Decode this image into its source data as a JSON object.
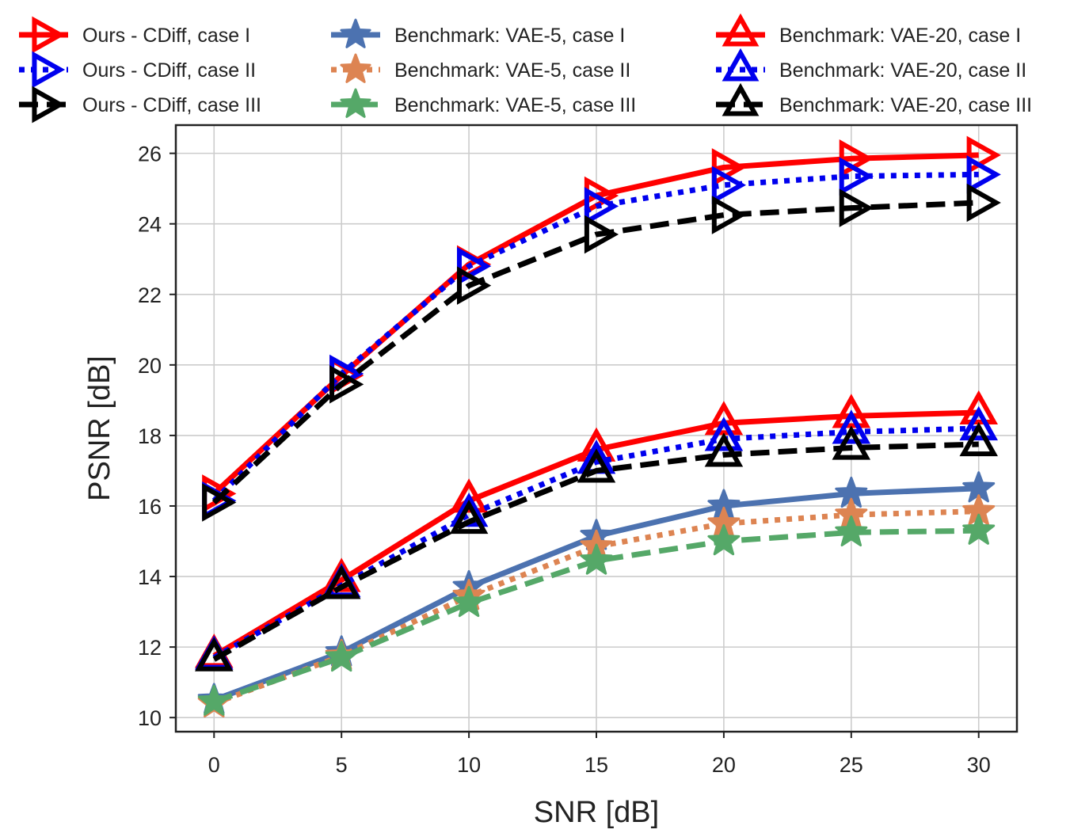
{
  "chart_data": {
    "type": "line",
    "xlabel": "SNR [dB]",
    "ylabel": "PSNR [dB]",
    "x": [
      0,
      5,
      10,
      15,
      20,
      25,
      30
    ],
    "xlim": [
      -1.5,
      31.5
    ],
    "ylim": [
      9.6,
      26.8
    ],
    "xticks": [
      0,
      5,
      10,
      15,
      20,
      25,
      30
    ],
    "yticks": [
      10,
      12,
      14,
      16,
      18,
      20,
      22,
      24,
      26
    ],
    "grid": true,
    "legend_position": "top, above plot, 3 columns",
    "series": [
      {
        "name": "Ours - CDiff, case I",
        "color": "#ff0000",
        "dash": "solid",
        "marker": "triangle-right",
        "values": [
          16.35,
          19.7,
          22.85,
          24.8,
          25.6,
          25.85,
          25.95
        ]
      },
      {
        "name": "Ours - CDiff, case II",
        "color": "#0000ee",
        "dash": "dotted",
        "marker": "triangle-right",
        "values": [
          16.15,
          19.75,
          22.8,
          24.5,
          25.1,
          25.35,
          25.4
        ]
      },
      {
        "name": "Ours - CDiff, case III",
        "color": "#000000",
        "dash": "dashed",
        "marker": "triangle-right",
        "values": [
          16.1,
          19.45,
          22.25,
          23.7,
          24.25,
          24.45,
          24.6
        ]
      },
      {
        "name": "Benchmark: VAE-5, case I",
        "color": "#4c72b0",
        "dash": "solid",
        "marker": "star",
        "values": [
          10.5,
          11.85,
          13.7,
          15.15,
          16.0,
          16.35,
          16.5
        ]
      },
      {
        "name": "Benchmark: VAE-5, case II",
        "color": "#dd8452",
        "dash": "dotted",
        "marker": "star",
        "values": [
          10.4,
          11.75,
          13.45,
          14.85,
          15.5,
          15.75,
          15.85
        ]
      },
      {
        "name": "Benchmark: VAE-5, case III",
        "color": "#55a868",
        "dash": "dashed",
        "marker": "star",
        "values": [
          10.45,
          11.7,
          13.25,
          14.45,
          15.0,
          15.25,
          15.3
        ]
      },
      {
        "name": "Benchmark: VAE-20, case I",
        "color": "#ff0000",
        "dash": "solid",
        "marker": "triangle-up",
        "values": [
          11.75,
          13.9,
          16.15,
          17.6,
          18.35,
          18.55,
          18.65
        ]
      },
      {
        "name": "Benchmark: VAE-20, case II",
        "color": "#0000ee",
        "dash": "dotted",
        "marker": "triangle-up",
        "values": [
          11.7,
          13.75,
          15.75,
          17.25,
          17.9,
          18.1,
          18.2
        ]
      },
      {
        "name": "Benchmark: VAE-20, case III",
        "color": "#000000",
        "dash": "dashed",
        "marker": "triangle-up",
        "values": [
          11.65,
          13.7,
          15.55,
          17.0,
          17.45,
          17.65,
          17.75
        ]
      }
    ]
  }
}
